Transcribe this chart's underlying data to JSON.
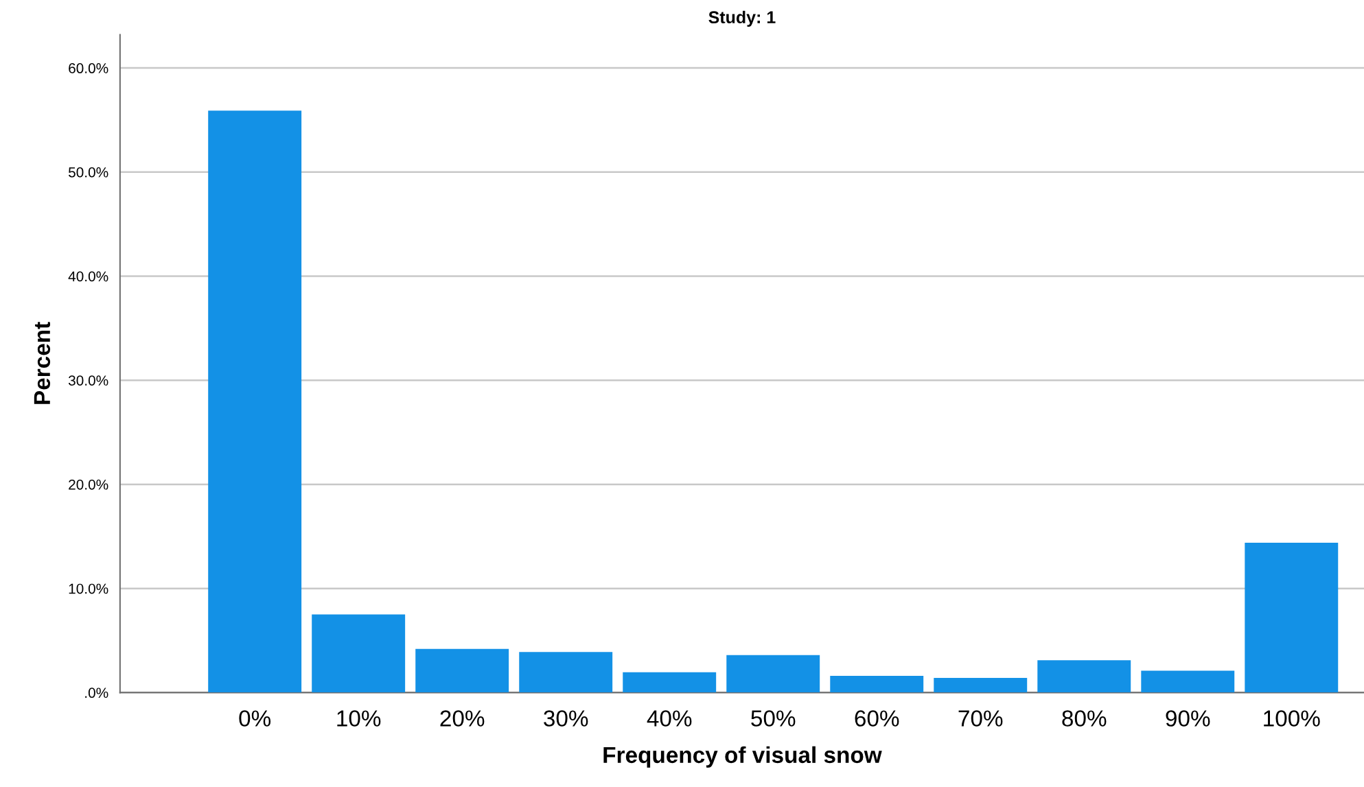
{
  "chart_data": {
    "type": "bar",
    "title": "Study: 1",
    "xlabel": "Frequency of visual snow",
    "ylabel": "Percent",
    "categories": [
      "0%",
      "10%",
      "20%",
      "30%",
      "40%",
      "50%",
      "60%",
      "70%",
      "80%",
      "90%",
      "100%"
    ],
    "values": [
      55.9,
      7.5,
      4.2,
      3.9,
      1.95,
      3.6,
      1.6,
      1.4,
      3.1,
      2.1,
      14.4
    ],
    "color": "#1391e6",
    "ylim": [
      0,
      63.2
    ],
    "yticks": [
      {
        "value": 0,
        "label": ".0%"
      },
      {
        "value": 10,
        "label": "10.0%"
      },
      {
        "value": 20,
        "label": "20.0%"
      },
      {
        "value": 30,
        "label": "30.0%"
      },
      {
        "value": 40,
        "label": "40.0%"
      },
      {
        "value": 50,
        "label": "50.0%"
      },
      {
        "value": 60,
        "label": "60.0%"
      }
    ],
    "grid": "y",
    "legend": false
  }
}
